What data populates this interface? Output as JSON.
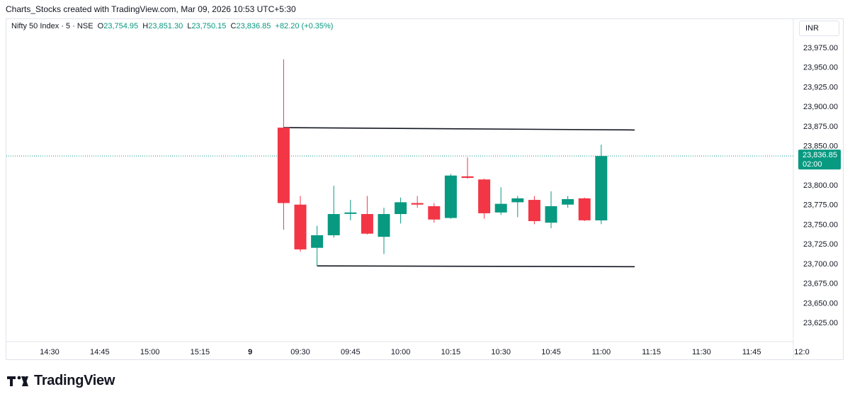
{
  "caption": "Charts_Stocks created with TradingView.com, Mar 09, 2026 10:53 UTC+5:30",
  "legend": {
    "symbol": "Nifty 50 Index · 5 · NSE",
    "o_label": "O",
    "o_value": "23,754.95",
    "h_label": "H",
    "h_value": "23,851.30",
    "l_label": "L",
    "l_value": "23,750.15",
    "c_label": "C",
    "c_value": "23,836.85",
    "change": "+82.20 (+0.35%)"
  },
  "currency": "INR",
  "logo_text": "TradingView",
  "colors": {
    "up": "#089981",
    "down": "#f23645",
    "line": "#131722",
    "price_tag": "#089981"
  },
  "chart_data": {
    "type": "candlestick",
    "ylim": [
      23600,
      23995
    ],
    "y_ticks": [
      23975,
      23950,
      23925,
      23900,
      23875,
      23850,
      23825,
      23800,
      23775,
      23750,
      23725,
      23700,
      23675,
      23650,
      23625
    ],
    "y_tick_labels": [
      "23,975.00",
      "23,950.00",
      "23,925.00",
      "23,900.00",
      "23,875.00",
      "23,850.00",
      "23,825.00",
      "23,800.00",
      "23,775.00",
      "23,750.00",
      "23,725.00",
      "23,700.00",
      "23,675.00",
      "23,650.00",
      "23,625.00"
    ],
    "x_ticks": [
      "14:30",
      "14:45",
      "15:00",
      "15:15",
      "9",
      "09:30",
      "09:45",
      "10:00",
      "10:15",
      "10:30",
      "10:45",
      "11:00",
      "11:15",
      "11:30",
      "11:45",
      "12:0"
    ],
    "x_tick_bold": [
      false,
      false,
      false,
      false,
      true,
      false,
      false,
      false,
      false,
      false,
      false,
      false,
      false,
      false,
      false,
      false
    ],
    "grid": false,
    "bar_index_start": 14,
    "candles": [
      {
        "o": 23873,
        "h": 23960,
        "l": 23743,
        "c": 23777
      },
      {
        "o": 23775,
        "h": 23786,
        "l": 23715,
        "c": 23718
      },
      {
        "o": 23720,
        "h": 23748,
        "l": 23697,
        "c": 23736
      },
      {
        "o": 23736,
        "h": 23799,
        "l": 23733,
        "c": 23763
      },
      {
        "o": 23764,
        "h": 23781,
        "l": 23755,
        "c": 23765
      },
      {
        "o": 23763,
        "h": 23786,
        "l": 23737,
        "c": 23738
      },
      {
        "o": 23734,
        "h": 23771,
        "l": 23712,
        "c": 23763
      },
      {
        "o": 23763,
        "h": 23784,
        "l": 23751,
        "c": 23778
      },
      {
        "o": 23777,
        "h": 23786,
        "l": 23771,
        "c": 23775
      },
      {
        "o": 23773,
        "h": 23777,
        "l": 23752,
        "c": 23756
      },
      {
        "o": 23758,
        "h": 23814,
        "l": 23757,
        "c": 23812
      },
      {
        "o": 23811,
        "h": 23835,
        "l": 23808,
        "c": 23809
      },
      {
        "o": 23807,
        "h": 23808,
        "l": 23757,
        "c": 23764
      },
      {
        "o": 23765,
        "h": 23797,
        "l": 23762,
        "c": 23776
      },
      {
        "o": 23778,
        "h": 23786,
        "l": 23759,
        "c": 23783
      },
      {
        "o": 23781,
        "h": 23786,
        "l": 23750,
        "c": 23754
      },
      {
        "o": 23752,
        "h": 23792,
        "l": 23745,
        "c": 23773
      },
      {
        "o": 23775,
        "h": 23786,
        "l": 23771,
        "c": 23782
      },
      {
        "o": 23783,
        "h": 23784,
        "l": 23754,
        "c": 23755
      },
      {
        "o": 23754.95,
        "h": 23851.3,
        "l": 23750.15,
        "c": 23836.85
      }
    ],
    "trendlines": [
      {
        "x1_bar": 14,
        "y1": 23873,
        "x2_bar": 35,
        "y2": 23870
      },
      {
        "x1_bar": 16,
        "y1": 23697,
        "x2_bar": 35,
        "y2": 23696
      }
    ],
    "last_price": 23836.85,
    "last_price_label": "23,836.85",
    "countdown": "02:00"
  }
}
